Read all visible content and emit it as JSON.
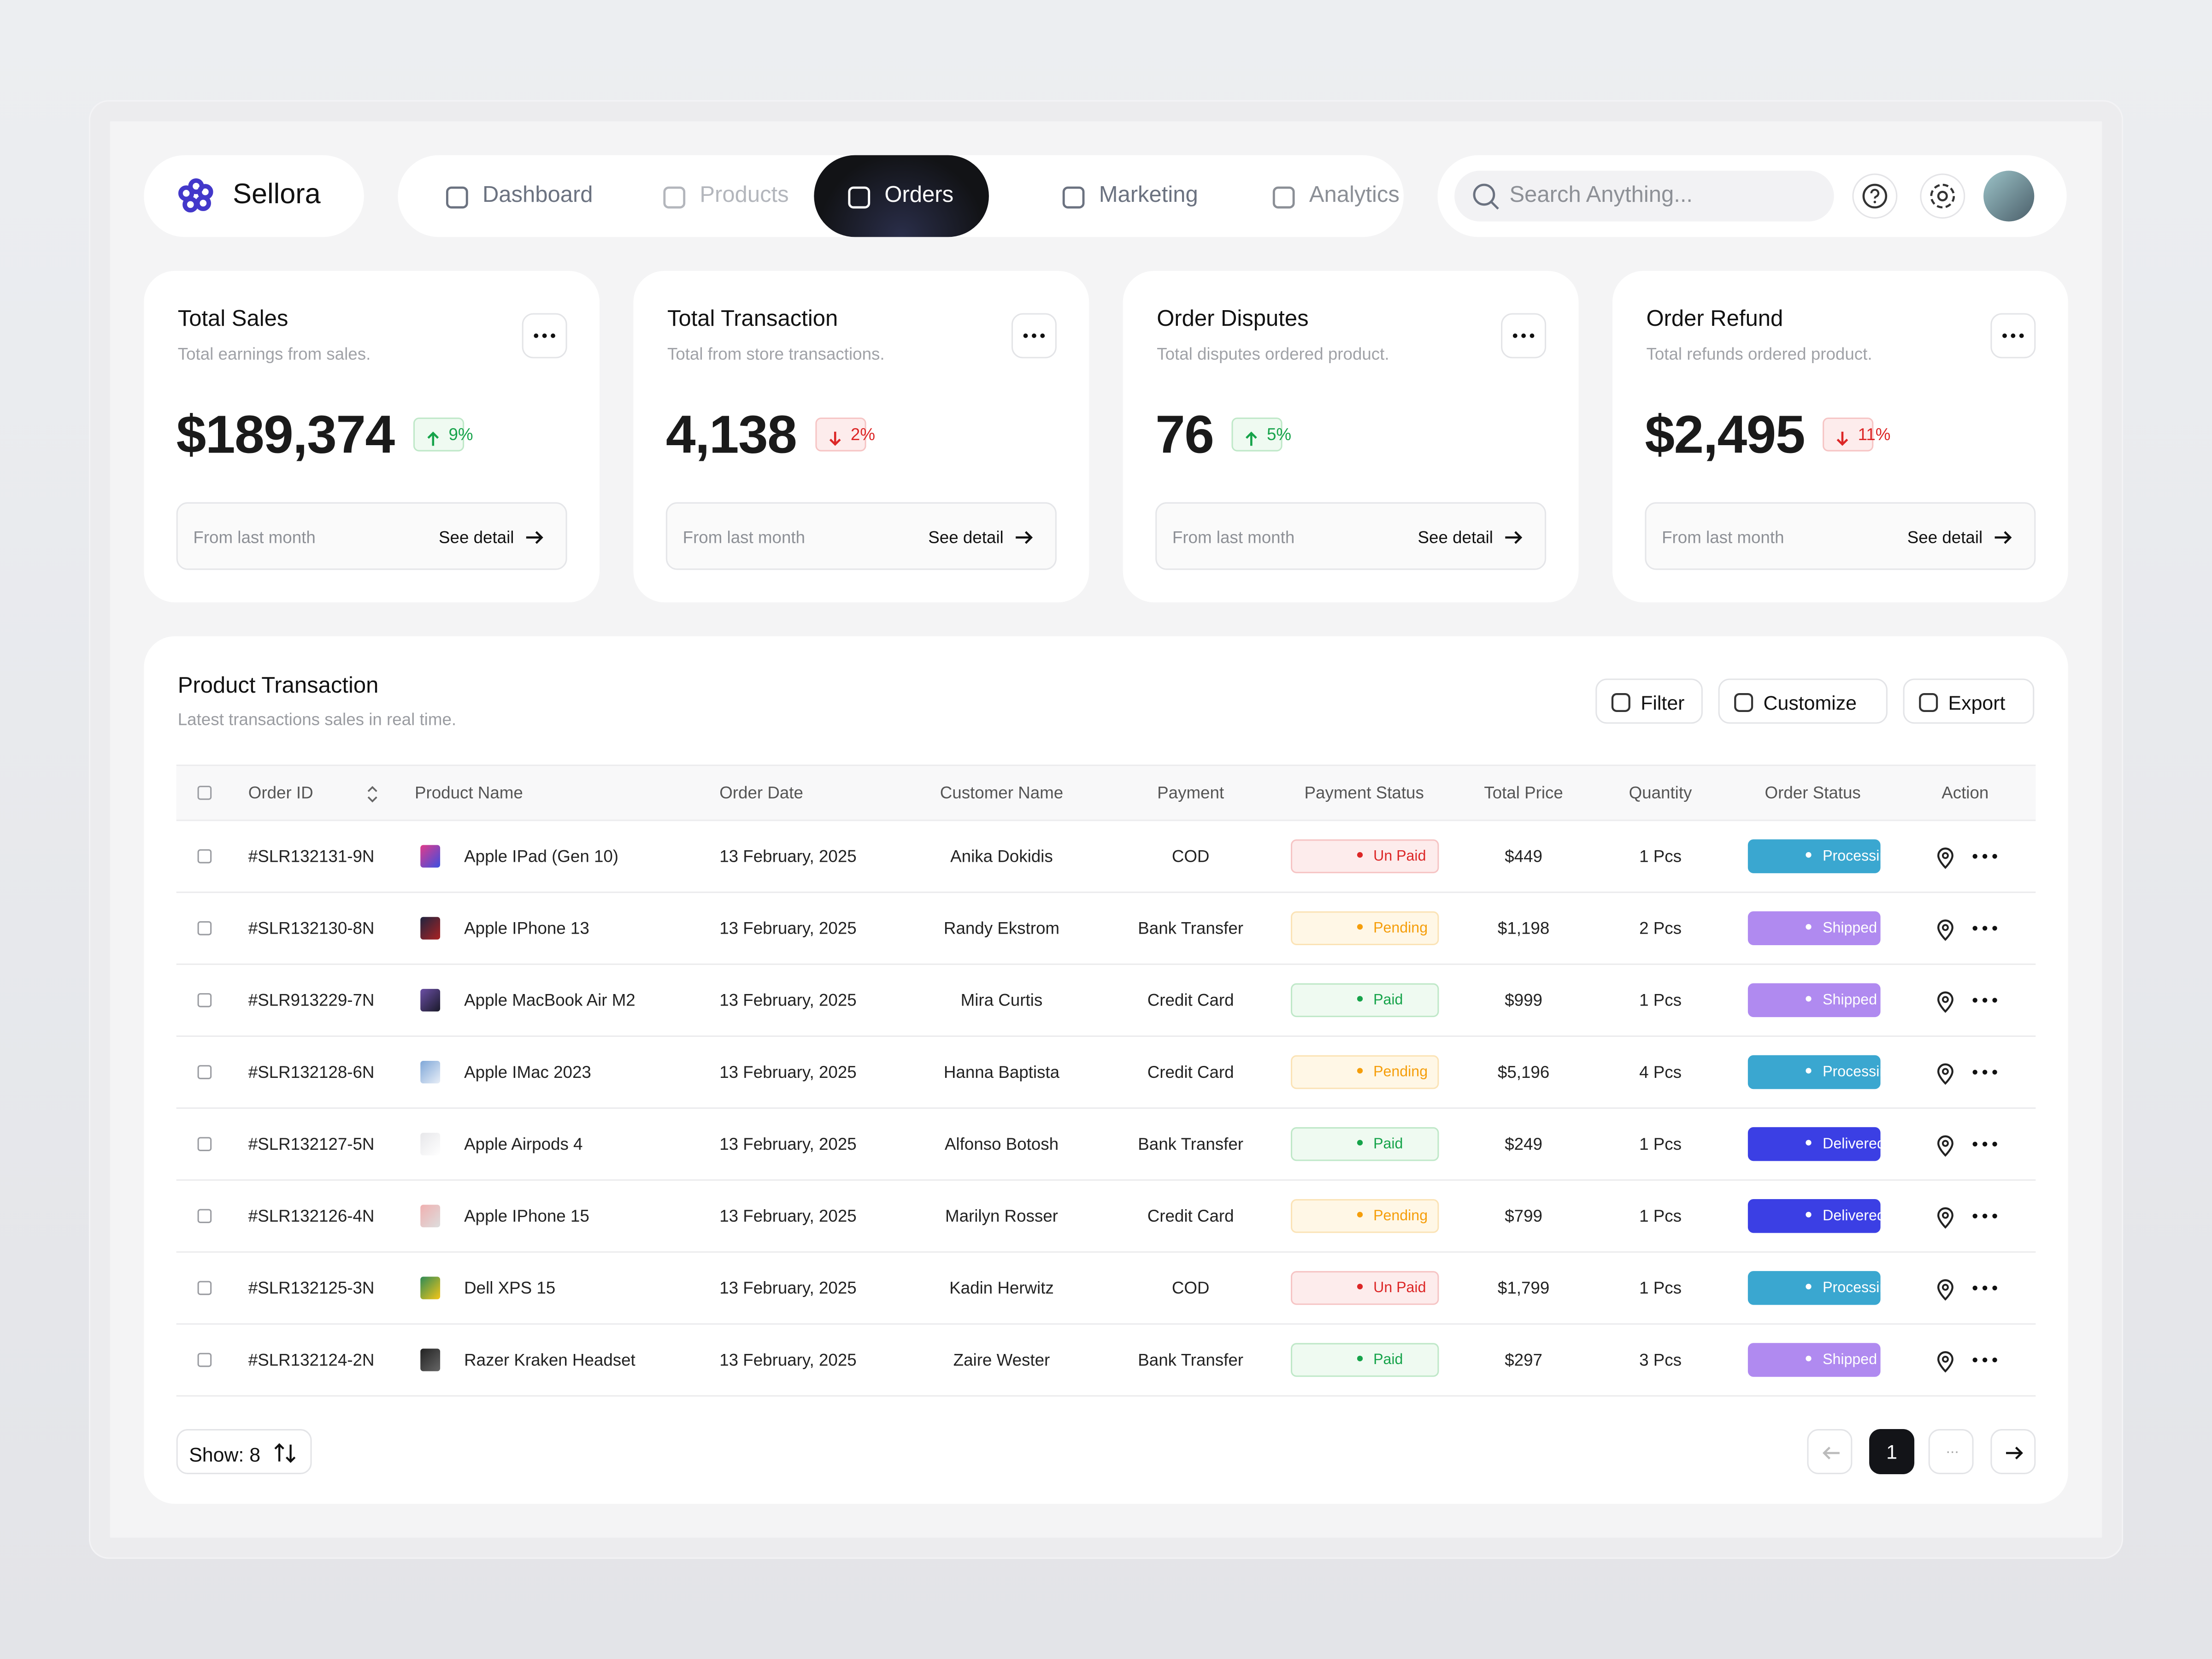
{
  "brand": "Sellora",
  "nav": [
    "Dashboard",
    "Products",
    "Orders",
    "Marketing",
    "Analytics"
  ],
  "active_nav": 2,
  "search_placeholder": "Search Anything...",
  "cards": [
    {
      "title": "Total Sales",
      "subtitle": "Total earnings from sales.",
      "value": "$189,374",
      "change": "9%",
      "trend": "up",
      "footer": "From last month",
      "link": "See detail"
    },
    {
      "title": "Total Transaction",
      "subtitle": "Total from store transactions.",
      "value": "4,138",
      "change": "2%",
      "trend": "down",
      "footer": "From last month",
      "link": "See detail"
    },
    {
      "title": "Order Disputes",
      "subtitle": "Total disputes ordered product.",
      "value": "76",
      "change": "5%",
      "trend": "up",
      "footer": "From last month",
      "link": "See detail"
    },
    {
      "title": "Order Refund",
      "subtitle": "Total refunds ordered product.",
      "value": "$2,495",
      "change": "11%",
      "trend": "down",
      "footer": "From last month",
      "link": "See detail"
    }
  ],
  "table": {
    "title": "Product Transaction",
    "subtitle": "Latest transactions sales in real time.",
    "actions": [
      "Filter",
      "Customize",
      "Export"
    ],
    "columns": [
      "Order ID",
      "Product Name",
      "Order Date",
      "Customer Name",
      "Payment",
      "Payment Status",
      "Total Price",
      "Quantity",
      "Order Status",
      "Action"
    ],
    "rows": [
      [
        "#SLR132131-9N",
        "Apple IPad (Gen 10)",
        "13 February, 2025",
        "Anika Dokidis",
        "COD",
        "Un Paid",
        "$449",
        "1 Pcs",
        "Processing"
      ],
      [
        "#SLR132130-8N",
        "Apple IPhone 13",
        "13 February, 2025",
        "Randy Ekstrom",
        "Bank Transfer",
        "Pending",
        "$1,198",
        "2 Pcs",
        "Shipped"
      ],
      [
        "#SLR913229-7N",
        "Apple MacBook Air M2",
        "13 February, 2025",
        "Mira Curtis",
        "Credit Card",
        "Paid",
        "$999",
        "1 Pcs",
        "Shipped"
      ],
      [
        "#SLR132128-6N",
        "Apple IMac 2023",
        "13 February, 2025",
        "Hanna Baptista",
        "Credit Card",
        "Pending",
        "$5,196",
        "4 Pcs",
        "Processing"
      ],
      [
        "#SLR132127-5N",
        "Apple Airpods 4",
        "13 February, 2025",
        "Alfonso Botosh",
        "Bank Transfer",
        "Paid",
        "$249",
        "1 Pcs",
        "Delivered"
      ],
      [
        "#SLR132126-4N",
        "Apple IPhone 15",
        "13 February, 2025",
        "Marilyn Rosser",
        "Credit Card",
        "Pending",
        "$799",
        "1 Pcs",
        "Delivered"
      ],
      [
        "#SLR132125-3N",
        "Dell XPS 15",
        "13 February, 2025",
        "Kadin Herwitz",
        "COD",
        "Un Paid",
        "$1,799",
        "1 Pcs",
        "Processing"
      ],
      [
        "#SLR132124-2N",
        "Razer Kraken Headset",
        "13 February, 2025",
        "Zaire Wester",
        "Bank Transfer",
        "Paid",
        "$297",
        "3 Pcs",
        "Shipped"
      ]
    ],
    "status_styles": {
      "Un Paid": {
        "color": "#dc2626",
        "background": "#fdecec",
        "border": "#f6c4c4"
      },
      "Pending": {
        "color": "#f59e0b",
        "background": "#fff7e6",
        "border": "#fbe3b6"
      },
      "Paid": {
        "color": "#16a34a",
        "background": "#effaf1",
        "border": "#bfe8c8"
      },
      "Processing": {
        "color": "#ffffff",
        "background": "#3aa7d0",
        "border": "#3aa7d0"
      },
      "Shipped": {
        "color": "#ffffff",
        "background": "#b08af0",
        "border": "#b08af0"
      },
      "Delivered": {
        "color": "#ffffff",
        "background": "#3b3fe4",
        "border": "#3b3fe4"
      }
    }
  },
  "show": "Show: 8",
  "pagination": {
    "current": "1",
    "gap": "..."
  }
}
